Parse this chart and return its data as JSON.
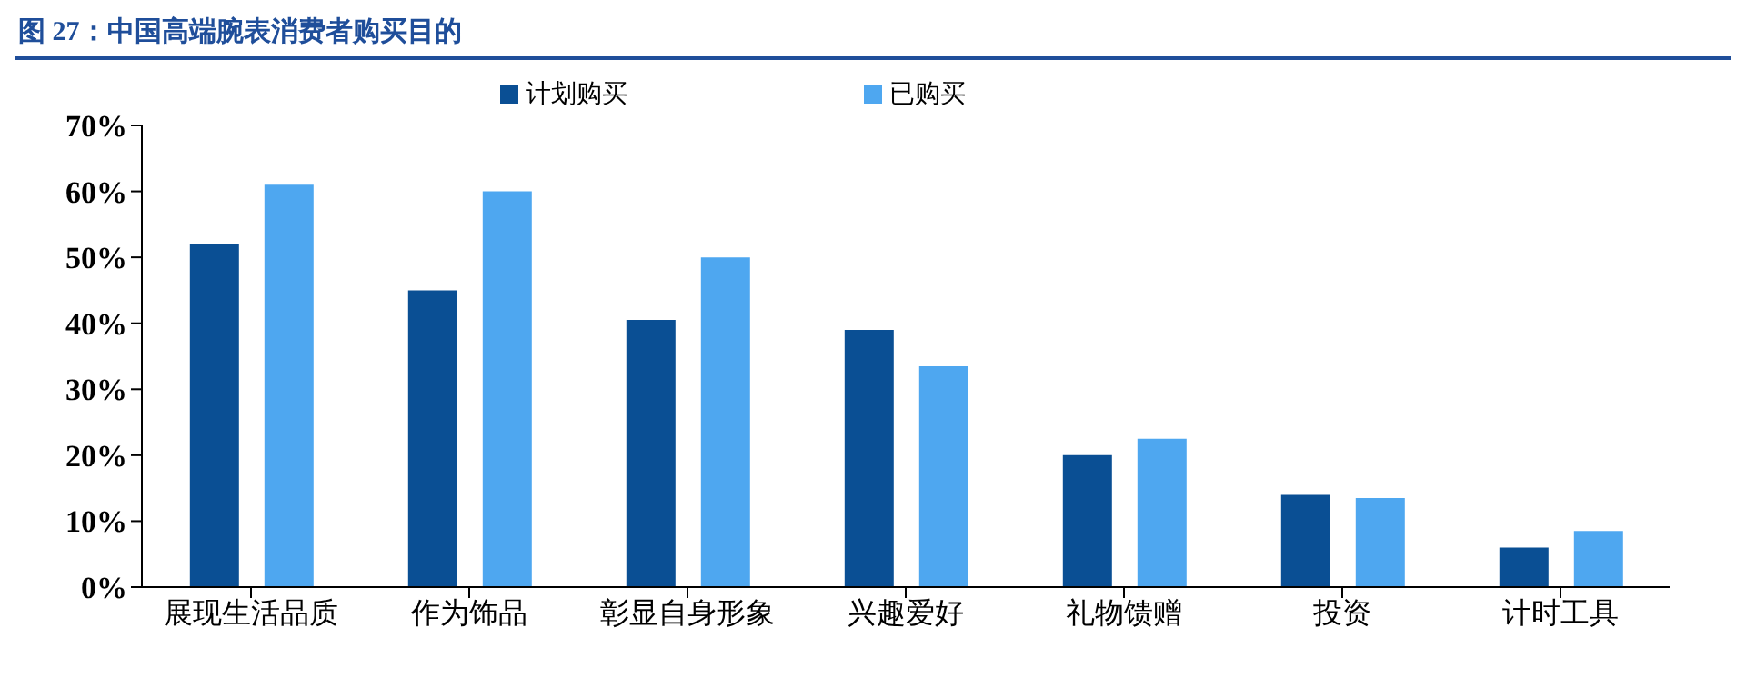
{
  "chart_data": {
    "type": "bar",
    "title": "图 27：中国高端腕表消费者购买目的",
    "categories": [
      "展现生活品质",
      "作为饰品",
      "彰显自身形象",
      "兴趣爱好",
      "礼物馈赠",
      "投资",
      "计时工具"
    ],
    "series": [
      {
        "name": "计划购买",
        "color": "#0a4f94",
        "values": [
          52,
          45,
          40.5,
          39,
          20,
          14,
          6
        ]
      },
      {
        "name": "已购买",
        "color": "#4ea7f0",
        "values": [
          61,
          60,
          50,
          33.5,
          22.5,
          13.5,
          8.5
        ]
      }
    ],
    "ylim": [
      0,
      70
    ],
    "yticks": [
      {
        "value": 0,
        "label": "0%"
      },
      {
        "value": 10,
        "label": "10%"
      },
      {
        "value": 20,
        "label": "20%"
      },
      {
        "value": 30,
        "label": "30%"
      },
      {
        "value": 40,
        "label": "40%"
      },
      {
        "value": 50,
        "label": "50%"
      },
      {
        "value": 60,
        "label": "60%"
      },
      {
        "value": 70,
        "label": "70%"
      }
    ],
    "legend": "top"
  }
}
